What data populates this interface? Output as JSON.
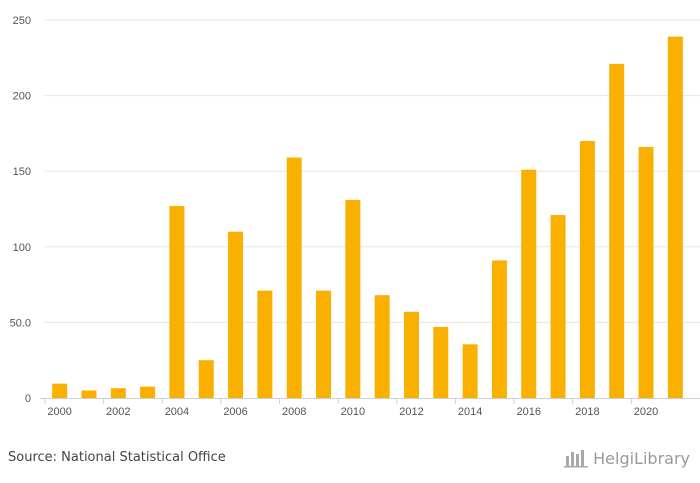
{
  "chart_data": {
    "type": "bar",
    "categories": [
      "2000",
      "2001",
      "2002",
      "2003",
      "2004",
      "2005",
      "2006",
      "2007",
      "2008",
      "2009",
      "2010",
      "2011",
      "2012",
      "2013",
      "2014",
      "2015",
      "2016",
      "2017",
      "2018",
      "2019",
      "2020",
      "2021"
    ],
    "values": [
      9.5,
      5.0,
      6.5,
      7.5,
      127,
      25,
      110,
      71,
      159,
      71,
      131,
      68,
      57,
      47,
      35.5,
      91,
      151,
      121,
      170,
      221,
      166,
      239
    ],
    "x_tick_labels": [
      "2000",
      "2002",
      "2004",
      "2006",
      "2008",
      "2010",
      "2012",
      "2014",
      "2016",
      "2018",
      "2020"
    ],
    "y_ticks": [
      0,
      50,
      100,
      150,
      200,
      250
    ],
    "y_tick_labels": [
      "0",
      "50.0",
      "100",
      "150",
      "200",
      "250"
    ],
    "ylim": [
      0,
      250
    ],
    "title": "",
    "xlabel": "",
    "ylabel": "",
    "grid": true,
    "bar_color": "#FAB000"
  },
  "footer": {
    "source": "Source: National Statistical Office",
    "brand": "HelgiLibrary"
  },
  "icons": {
    "brand_logo": "helgi-library-logo-icon"
  }
}
